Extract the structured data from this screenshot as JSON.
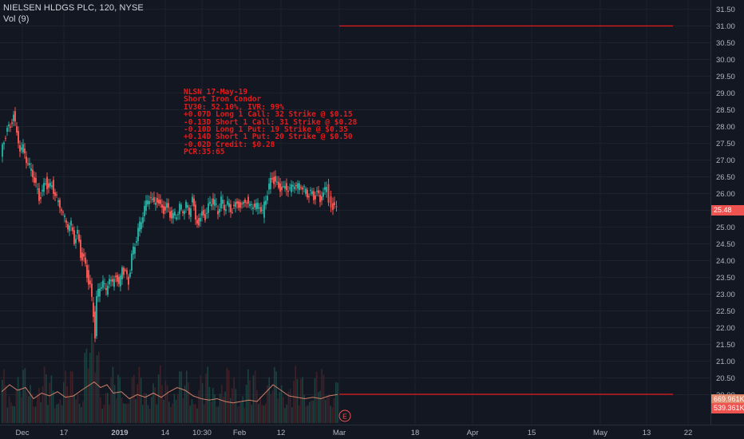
{
  "header": {
    "title": "NIELSEN HLDGS PLC, 120, NYSE",
    "volume_label": "Vol (9)"
  },
  "annotation": {
    "lines": [
      "NLSN 17-May-19",
      "Short Iron Condor",
      "IV30: 52.10%, IVR: 99%",
      "+0.07D Long 1 Call: 32 Strike @ $0.15",
      "-0.13D Short 1 Call: 31 Strike @ $0.28",
      "-0.10D Long 1 Put: 19 Strike @ $0.35",
      "+0.14D Short 1 Put: 20 Strike @ $0.50",
      "-0.02D Credit: $0.28",
      "PCR:35:65"
    ]
  },
  "badges": {
    "price": "25.48",
    "vol_ma": "669.961K",
    "vol": "539.361K"
  },
  "earnings_marker": "E",
  "colors": {
    "background": "#131722",
    "grid": "#1e222d",
    "up": "#26a69a",
    "down": "#ef5350",
    "hline": "#e51b1b",
    "note": "#e51b1b",
    "vol_ma_line": "#e08a6e"
  },
  "chart_data": {
    "type": "candlestick",
    "title": "NIELSEN HLDGS PLC, 120, NYSE",
    "y_axis": {
      "ticks": [
        "31.50",
        "31.00",
        "30.50",
        "30.00",
        "29.50",
        "29.00",
        "28.50",
        "28.00",
        "27.50",
        "27.00",
        "26.50",
        "26.00",
        "25.50",
        "25.00",
        "24.50",
        "24.00",
        "23.50",
        "23.00",
        "22.50",
        "22.00",
        "21.50",
        "21.00",
        "20.50",
        "20.00"
      ],
      "range": [
        20.0,
        31.6
      ]
    },
    "x_axis": {
      "ticks": [
        "Dec",
        "17",
        "2019",
        "14",
        "10:30",
        "Feb",
        "12",
        "Mar",
        "18",
        "Apr",
        "15",
        "May",
        "13",
        "22"
      ]
    },
    "horizontal_lines": [
      31.0,
      20.0
    ],
    "last_price": 25.48,
    "price_path": [
      [
        0,
        27.1
      ],
      [
        4,
        27.6
      ],
      [
        8,
        27.9
      ],
      [
        12,
        28.0
      ],
      [
        16,
        28.35
      ],
      [
        20,
        27.8
      ],
      [
        24,
        27.3
      ],
      [
        28,
        27.4
      ],
      [
        32,
        27.0
      ],
      [
        36,
        26.8
      ],
      [
        40,
        26.6
      ],
      [
        44,
        26.2
      ],
      [
        48,
        25.9
      ],
      [
        52,
        26.0
      ],
      [
        56,
        26.4
      ],
      [
        60,
        26.1
      ],
      [
        64,
        26.3
      ],
      [
        68,
        25.9
      ],
      [
        72,
        25.8
      ],
      [
        76,
        25.5
      ],
      [
        80,
        25.3
      ],
      [
        84,
        25.0
      ],
      [
        88,
        25.1
      ],
      [
        92,
        24.6
      ],
      [
        96,
        24.8
      ],
      [
        100,
        24.2
      ],
      [
        104,
        24.0
      ],
      [
        108,
        23.6
      ],
      [
        112,
        23.2
      ],
      [
        116,
        22.4
      ],
      [
        118,
        21.8
      ],
      [
        120,
        22.9
      ],
      [
        124,
        23.2
      ],
      [
        128,
        23.4
      ],
      [
        132,
        23.1
      ],
      [
        136,
        23.5
      ],
      [
        140,
        23.3
      ],
      [
        144,
        23.6
      ],
      [
        148,
        23.2
      ],
      [
        150,
        23.5
      ],
      [
        152,
        23.7
      ],
      [
        156,
        23.6
      ],
      [
        160,
        23.4
      ],
      [
        164,
        24.1
      ],
      [
        168,
        24.5
      ],
      [
        172,
        24.9
      ],
      [
        176,
        25.2
      ],
      [
        180,
        25.6
      ],
      [
        184,
        25.8
      ],
      [
        188,
        25.9
      ],
      [
        192,
        25.7
      ],
      [
        196,
        25.8
      ],
      [
        200,
        25.6
      ],
      [
        204,
        25.5
      ],
      [
        208,
        25.6
      ],
      [
        212,
        25.4
      ],
      [
        216,
        25.3
      ],
      [
        220,
        25.4
      ],
      [
        224,
        25.6
      ],
      [
        228,
        25.5
      ],
      [
        232,
        25.7
      ],
      [
        236,
        25.4
      ],
      [
        240,
        25.9
      ],
      [
        244,
        25.2
      ],
      [
        248,
        25.1
      ],
      [
        252,
        25.4
      ],
      [
        256,
        25.3
      ],
      [
        260,
        25.6
      ],
      [
        264,
        25.8
      ],
      [
        268,
        25.7
      ],
      [
        272,
        25.5
      ],
      [
        276,
        25.8
      ],
      [
        280,
        25.6
      ],
      [
        284,
        25.7
      ],
      [
        288,
        25.5
      ],
      [
        292,
        25.6
      ],
      [
        296,
        25.7
      ],
      [
        300,
        25.6
      ],
      [
        304,
        25.7
      ],
      [
        308,
        25.8
      ],
      [
        312,
        25.6
      ],
      [
        316,
        25.7
      ],
      [
        320,
        25.6
      ],
      [
        324,
        25.7
      ],
      [
        328,
        25.4
      ],
      [
        332,
        25.9
      ],
      [
        336,
        26.2
      ],
      [
        340,
        26.5
      ],
      [
        344,
        26.3
      ],
      [
        348,
        26.2
      ],
      [
        352,
        26.1
      ],
      [
        356,
        26.2
      ],
      [
        360,
        26.1
      ],
      [
        364,
        26.2
      ],
      [
        368,
        26.3
      ],
      [
        372,
        26.2
      ],
      [
        376,
        26.3
      ],
      [
        380,
        26.1
      ],
      [
        384,
        26.0
      ],
      [
        388,
        26.0
      ],
      [
        392,
        25.9
      ],
      [
        396,
        26.0
      ],
      [
        400,
        25.8
      ],
      [
        404,
        26.0
      ],
      [
        408,
        26.2
      ],
      [
        411,
        25.8
      ],
      [
        414,
        25.7
      ],
      [
        418,
        25.55
      ],
      [
        421,
        25.48
      ]
    ],
    "volume_ma_path": [
      [
        0,
        0.55
      ],
      [
        10,
        0.8
      ],
      [
        20,
        0.6
      ],
      [
        30,
        0.7
      ],
      [
        40,
        0.3
      ],
      [
        50,
        0.5
      ],
      [
        60,
        0.4
      ],
      [
        70,
        0.55
      ],
      [
        80,
        0.35
      ],
      [
        90,
        0.4
      ],
      [
        100,
        0.6
      ],
      [
        108,
        0.75
      ],
      [
        116,
        0.9
      ],
      [
        124,
        0.7
      ],
      [
        132,
        0.8
      ],
      [
        140,
        0.5
      ],
      [
        150,
        0.55
      ],
      [
        160,
        0.3
      ],
      [
        170,
        0.45
      ],
      [
        180,
        0.35
      ],
      [
        190,
        0.5
      ],
      [
        200,
        0.35
      ],
      [
        210,
        0.55
      ],
      [
        220,
        0.7
      ],
      [
        230,
        0.6
      ],
      [
        240,
        0.4
      ],
      [
        250,
        0.3
      ],
      [
        260,
        0.25
      ],
      [
        270,
        0.3
      ],
      [
        280,
        0.2
      ],
      [
        290,
        0.15
      ],
      [
        300,
        0.2
      ],
      [
        310,
        0.25
      ],
      [
        320,
        0.2
      ],
      [
        330,
        0.5
      ],
      [
        340,
        0.8
      ],
      [
        350,
        0.6
      ],
      [
        360,
        0.4
      ],
      [
        370,
        0.35
      ],
      [
        380,
        0.3
      ],
      [
        390,
        0.35
      ],
      [
        400,
        0.3
      ],
      [
        410,
        0.4
      ],
      [
        421,
        0.45
      ]
    ]
  }
}
